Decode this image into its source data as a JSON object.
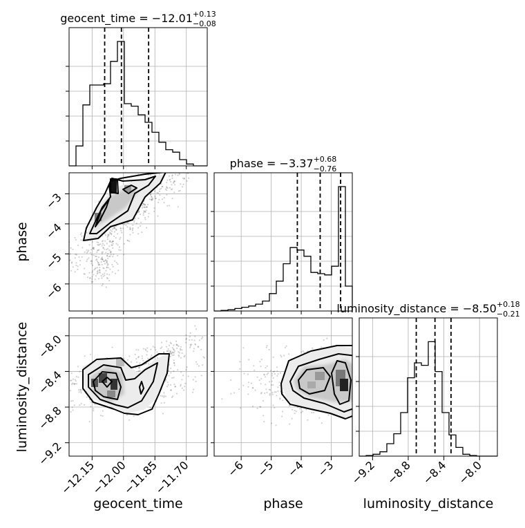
{
  "chart_data": {
    "type": "corner",
    "parameters": [
      "geocent_time",
      "phase",
      "luminosity_distance"
    ],
    "titles": [
      {
        "param": "geocent_time",
        "text": "geocent_time = −12.01",
        "plus": "+0.13",
        "minus": "−0.08"
      },
      {
        "param": "phase",
        "text": "phase = −3.37",
        "plus": "+0.68",
        "minus": "−0.76"
      },
      {
        "param": "luminosity_distance",
        "text": "luminosity_distance = −8.50",
        "plus": "+0.18",
        "minus": "−0.21"
      }
    ],
    "axis_labels": {
      "geocent_time": "geocent_time",
      "phase": "phase",
      "luminosity_distance": "luminosity_distance"
    },
    "ticks": {
      "geocent_time": {
        "values": [
          -12.15,
          -12.0,
          -11.85,
          -11.7
        ],
        "labels": [
          "−12.15",
          "−12.00",
          "−11.85",
          "−11.70"
        ]
      },
      "phase": {
        "values": [
          -6,
          -5,
          -4,
          -3
        ],
        "labels": [
          "−6",
          "−5",
          "−4",
          "−3"
        ]
      },
      "luminosity_distance": {
        "values": [
          -9.2,
          -8.8,
          -8.4,
          -8.0
        ],
        "labels": [
          "−9.2",
          "−8.8",
          "−8.4",
          "−8.0"
        ]
      }
    },
    "ranges": {
      "geocent_time": [
        -12.26,
        -11.6
      ],
      "phase": [
        -6.9,
        -2.3
      ],
      "luminosity_distance": [
        -9.35,
        -7.8
      ]
    },
    "quantiles": {
      "geocent_time": [
        -12.09,
        -12.01,
        -11.88
      ],
      "phase": [
        -4.13,
        -3.37,
        -2.69
      ],
      "luminosity_distance": [
        -8.71,
        -8.5,
        -8.32
      ]
    },
    "histograms": {
      "geocent_time": {
        "edges": [
          -12.26,
          -12.227,
          -12.194,
          -12.161,
          -12.128,
          -12.095,
          -12.062,
          -12.029,
          -11.996,
          -11.963,
          -11.93,
          -11.897,
          -11.864,
          -11.831,
          -11.798,
          -11.765,
          -11.732,
          -11.699,
          -11.666,
          -11.633,
          -11.6
        ],
        "counts": [
          0,
          0.16,
          0.49,
          0.65,
          0.65,
          0.66,
          0.84,
          1.0,
          0.5,
          0.48,
          0.41,
          0.35,
          0.27,
          0.19,
          0.13,
          0.11,
          0.05,
          0.015,
          0,
          0
        ]
      },
      "phase": {
        "edges": [
          -6.9,
          -6.67,
          -6.44,
          -6.21,
          -5.98,
          -5.75,
          -5.52,
          -5.29,
          -5.06,
          -4.83,
          -4.6,
          -4.37,
          -4.14,
          -3.91,
          -3.68,
          -3.45,
          -3.22,
          -2.99,
          -2.76,
          -2.53,
          -2.3
        ],
        "counts": [
          0,
          0.005,
          0.01,
          0.02,
          0.03,
          0.04,
          0.055,
          0.08,
          0.14,
          0.24,
          0.38,
          0.51,
          0.49,
          0.44,
          0.31,
          0.3,
          0.29,
          0.36,
          1.0,
          0.2
        ]
      },
      "luminosity_distance": {
        "edges": [
          -9.35,
          -9.2725,
          -9.195,
          -9.1175,
          -9.04,
          -8.9625,
          -8.885,
          -8.8075,
          -8.73,
          -8.6525,
          -8.575,
          -8.4975,
          -8.42,
          -8.3425,
          -8.265,
          -8.1875,
          -8.11,
          -8.0325,
          -7.955,
          -7.8775,
          -7.8
        ],
        "counts": [
          0,
          0.005,
          0.015,
          0.035,
          0.1,
          0.18,
          0.35,
          0.63,
          0.75,
          0.73,
          0.92,
          0.68,
          0.35,
          0.17,
          0.07,
          0.015,
          0.005,
          0,
          0,
          0
        ]
      }
    },
    "grid": true
  }
}
